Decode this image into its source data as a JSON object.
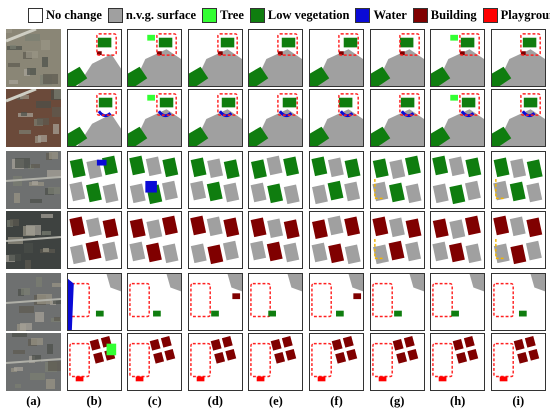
{
  "legend": [
    {
      "label": "No change",
      "color": "#ffffff",
      "key": "no-change"
    },
    {
      "label": "n.v.g. surface",
      "color": "#a0a0a0",
      "key": "nvg-surface"
    },
    {
      "label": "Tree",
      "color": "#33ff33",
      "key": "tree"
    },
    {
      "label": "Low vegetation",
      "color": "#0f7d0f",
      "key": "low-vegetation"
    },
    {
      "label": "Water",
      "color": "#0a0ad6",
      "key": "water"
    },
    {
      "label": "Building",
      "color": "#800000",
      "key": "building"
    },
    {
      "label": "Playgrounds",
      "color": "#ff0000",
      "key": "playgrounds"
    }
  ],
  "columns": [
    "(a)",
    "(b)",
    "(c)",
    "(d)",
    "(e)",
    "(f)",
    "(g)",
    "(h)",
    "(i)"
  ],
  "rows": 6,
  "colors": {
    "photo_tan": "#8a8676",
    "photo_brown": "#6b4a3a",
    "photo_gray": "#6e7070",
    "photo_dark": "#3e4240",
    "highlight_dashed": "#ff2020",
    "highlight_yellow": "#f2b400"
  }
}
